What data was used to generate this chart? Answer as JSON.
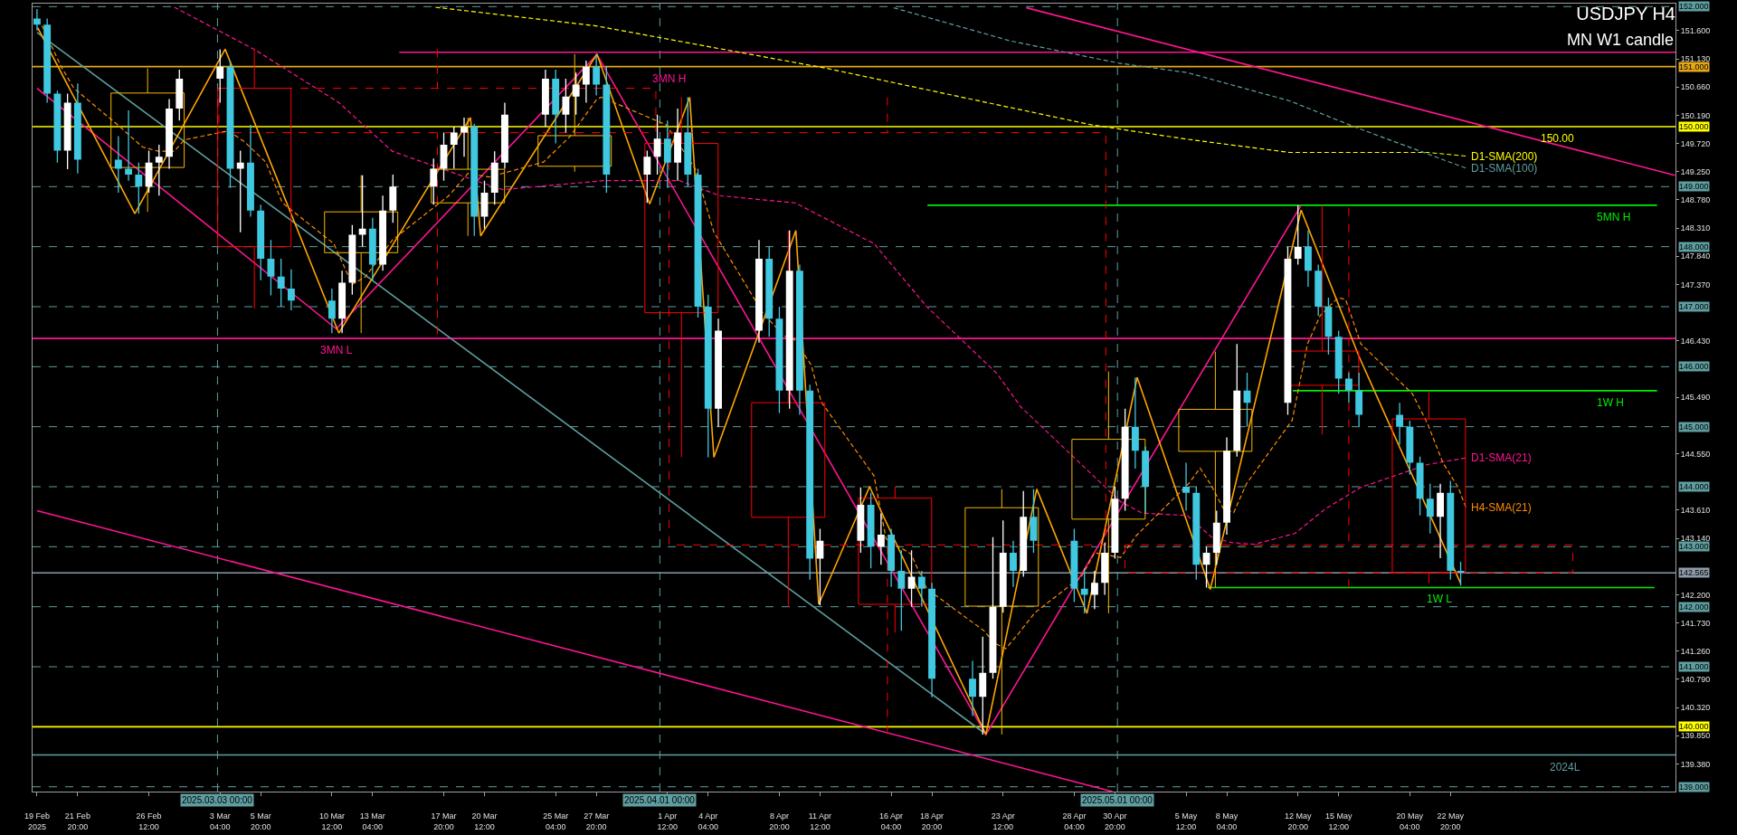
{
  "chart_data": {
    "type": "candlestick",
    "title": "USDJPY H4",
    "subtitle": "MN W1 candle",
    "xlim": [
      "2025-02-18T21:00",
      "2025-06-06T14:00"
    ],
    "ylim": [
      138.92,
      152.05
    ],
    "xticks": [
      {
        "value": "2025-02-19T04:00",
        "label": "19 Feb 2025"
      },
      {
        "value": "2025-02-21T20:00",
        "label": "21 Feb 20:00"
      },
      {
        "value": "2025-02-26T12:00",
        "label": "26 Feb 12:00"
      },
      {
        "value": "2025-03-03T04:00",
        "label": "3 Mar 04:00"
      },
      {
        "value": "2025-03-05T20:00",
        "label": "5 Mar 20:00"
      },
      {
        "value": "2025-03-10T12:00",
        "label": "10 Mar 12:00"
      },
      {
        "value": "2025-03-13T04:00",
        "label": "13 Mar 04:00"
      },
      {
        "value": "2025-03-17T20:00",
        "label": "17 Mar 20:00"
      },
      {
        "value": "2025-03-20T12:00",
        "label": "20 Mar 12:00"
      },
      {
        "value": "2025-03-25T04:00",
        "label": "25 Mar 04:00"
      },
      {
        "value": "2025-03-27T20:00",
        "label": "27 Mar 20:00"
      },
      {
        "value": "2025-04-01T12:00",
        "label": "1 Apr 12:00"
      },
      {
        "value": "2025-04-04T04:00",
        "label": "4 Apr 04:00"
      },
      {
        "value": "2025-04-08T20:00",
        "label": "8 Apr 20:00"
      },
      {
        "value": "2025-04-11T12:00",
        "label": "11 Apr 12:00"
      },
      {
        "value": "2025-04-16T04:00",
        "label": "16 Apr 04:00"
      },
      {
        "value": "2025-04-18T20:00",
        "label": "18 Apr 20:00"
      },
      {
        "value": "2025-04-23T12:00",
        "label": "23 Apr 12:00"
      },
      {
        "value": "2025-04-28T04:00",
        "label": "28 Apr 04:00"
      },
      {
        "value": "2025-04-30T20:00",
        "label": "30 Apr 20:00"
      },
      {
        "value": "2025-05-05T12:00",
        "label": "5 May 12:00"
      },
      {
        "value": "2025-05-08T04:00",
        "label": "8 May 04:00"
      },
      {
        "value": "2025-05-12T20:00",
        "label": "12 May 20:00"
      },
      {
        "value": "2025-05-15T12:00",
        "label": "15 May 12:00"
      },
      {
        "value": "2025-05-20T04:00",
        "label": "20 May 04:00"
      },
      {
        "value": "2025-05-22T20:00",
        "label": "22 May 20:00"
      }
    ],
    "yticks": [
      {
        "value": 151.6,
        "label": "151.600"
      },
      {
        "value": 151.13,
        "label": "151.130"
      },
      {
        "value": 150.66,
        "label": "150.660"
      },
      {
        "value": 150.19,
        "label": "150.190"
      },
      {
        "value": 149.72,
        "label": "149.720"
      },
      {
        "value": 149.25,
        "label": "149.250"
      },
      {
        "value": 148.78,
        "label": "148.780"
      },
      {
        "value": 148.31,
        "label": "148.310"
      },
      {
        "value": 147.84,
        "label": "147.840"
      },
      {
        "value": 147.37,
        "label": "147.370"
      },
      {
        "value": 146.43,
        "label": "146.430"
      },
      {
        "value": 145.49,
        "label": "145.490"
      },
      {
        "value": 144.55,
        "label": "144.550"
      },
      {
        "value": 143.61,
        "label": "143.610"
      },
      {
        "value": 143.14,
        "label": "143.140"
      },
      {
        "value": 142.2,
        "label": "142.200"
      },
      {
        "value": 141.73,
        "label": "141.730"
      },
      {
        "value": 141.26,
        "label": "141.260"
      },
      {
        "value": 140.79,
        "label": "140.790"
      },
      {
        "value": 140.32,
        "label": "140.320"
      },
      {
        "value": 139.85,
        "label": "139.850"
      },
      {
        "value": 139.38,
        "label": "139.380"
      }
    ],
    "series": [
      {
        "line_style": "dashed",
        "x": [
          "2025-03-17T10:00",
          "2025-04-15T22:00",
          "2025-05-16T04:00"
        ],
        "ohlc": [
          [
            150.64,
            151.29,
            146.54,
            149.9
          ],
          [
            149.9,
            150.49,
            139.89,
            143.03
          ],
          [
            143.03,
            148.65,
            142.32,
            142.565
          ]
        ],
        "colors": [
          "#ff0000",
          "#ff0000",
          "#ff0000"
        ]
      },
      {
        "line_style": "solid",
        "x": [
          "2025-02-26T10:00",
          "2025-03-05T10:00",
          "2025-03-12T10:00",
          "2025-03-19T10:00",
          "2025-03-26T10:00",
          "2025-04-02T10:00",
          "2025-04-09T10:00",
          "2025-04-16T10:00",
          "2025-04-23T10:00",
          "2025-04-30T10:00",
          "2025-05-07T10:00",
          "2025-05-14T10:00",
          "2025-05-21T10:00"
        ],
        "ohlc": [
          [
            149.32,
            150.97,
            148.58,
            150.56
          ],
          [
            150.64,
            151.29,
            146.97,
            148.0
          ],
          [
            147.9,
            149.19,
            146.56,
            148.58
          ],
          [
            148.73,
            150.15,
            148.18,
            149.29
          ],
          [
            149.34,
            151.21,
            149.25,
            149.85
          ],
          [
            149.72,
            150.49,
            144.49,
            146.9
          ],
          [
            145.4,
            148.27,
            142.0,
            143.49
          ],
          [
            143.81,
            144.0,
            141.57,
            142.04
          ],
          [
            142.01,
            143.96,
            139.87,
            143.65
          ],
          [
            143.46,
            145.92,
            141.89,
            144.79
          ],
          [
            144.59,
            146.25,
            142.32,
            145.29
          ],
          [
            146.26,
            148.69,
            144.87,
            145.69
          ],
          [
            145.13,
            145.58,
            142.39,
            142.565
          ]
        ],
        "colors": [
          "#f5b800",
          "#ff0000",
          "#f5b800",
          "#f5b800",
          "#f5b800",
          "#ff0000",
          "#ff0000",
          "#ff0000",
          "#f5b800",
          "#f5b800",
          "#f5b800",
          "#ff0000",
          "#ff0000"
        ]
      },
      {
        "x": [
          "2025-02-19T04:00",
          "2025-02-19T20:00",
          "2025-02-20T12:00",
          "2025-02-21T04:00",
          "2025-02-21T20:00",
          "2025-02-24T12:00",
          "2025-02-25T04:00",
          "2025-02-25T20:00",
          "2025-02-26T12:00",
          "2025-02-27T04:00",
          "2025-02-27T20:00",
          "2025-02-28T12:00",
          "2025-03-03T04:00",
          "2025-03-03T20:00",
          "2025-03-04T12:00",
          "2025-03-05T04:00",
          "2025-03-05T20:00",
          "2025-03-06T12:00",
          "2025-03-07T04:00",
          "2025-03-07T20:00",
          "2025-03-10T12:00",
          "2025-03-11T04:00",
          "2025-03-11T20:00",
          "2025-03-12T12:00",
          "2025-03-13T04:00",
          "2025-03-13T20:00",
          "2025-03-14T12:00",
          "2025-03-17T04:00",
          "2025-03-17T20:00",
          "2025-03-18T12:00",
          "2025-03-19T04:00",
          "2025-03-19T20:00",
          "2025-03-20T12:00",
          "2025-03-21T04:00",
          "2025-03-21T20:00",
          "2025-03-24T12:00",
          "2025-03-25T04:00",
          "2025-03-25T20:00",
          "2025-03-26T12:00",
          "2025-03-27T04:00",
          "2025-03-27T20:00",
          "2025-03-28T12:00",
          "2025-03-31T04:00",
          "2025-03-31T20:00",
          "2025-04-01T12:00",
          "2025-04-02T04:00",
          "2025-04-02T20:00",
          "2025-04-03T12:00",
          "2025-04-04T04:00",
          "2025-04-04T20:00",
          "2025-04-07T12:00",
          "2025-04-08T04:00",
          "2025-04-08T20:00",
          "2025-04-09T12:00",
          "2025-04-10T04:00",
          "2025-04-10T20:00",
          "2025-04-11T12:00",
          "2025-04-14T04:00",
          "2025-04-14T20:00",
          "2025-04-15T12:00",
          "2025-04-16T04:00",
          "2025-04-16T20:00",
          "2025-04-17T12:00",
          "2025-04-18T04:00",
          "2025-04-18T20:00",
          "2025-04-21T12:00",
          "2025-04-22T04:00",
          "2025-04-22T20:00",
          "2025-04-23T12:00",
          "2025-04-24T04:00",
          "2025-04-24T20:00",
          "2025-04-25T12:00",
          "2025-04-28T04:00",
          "2025-04-28T20:00",
          "2025-04-29T12:00",
          "2025-04-30T04:00",
          "2025-04-30T20:00",
          "2025-05-01T12:00",
          "2025-05-02T04:00",
          "2025-05-02T20:00",
          "2025-05-05T12:00",
          "2025-05-06T04:00",
          "2025-05-06T20:00",
          "2025-05-07T12:00",
          "2025-05-08T04:00",
          "2025-05-08T20:00",
          "2025-05-09T12:00",
          "2025-05-12T04:00",
          "2025-05-12T20:00",
          "2025-05-13T12:00",
          "2025-05-14T04:00",
          "2025-05-14T20:00",
          "2025-05-15T12:00",
          "2025-05-16T04:00",
          "2025-05-16T20:00",
          "2025-05-19T12:00",
          "2025-05-20T04:00",
          "2025-05-20T20:00",
          "2025-05-21T12:00",
          "2025-05-22T04:00",
          "2025-05-22T20:00",
          "2025-05-23T12:00"
        ],
        "ohlc": [
          [
            151.8,
            151.96,
            151.6,
            151.7
          ],
          [
            151.7,
            151.8,
            150.4,
            150.55
          ],
          [
            150.55,
            150.6,
            149.4,
            149.6
          ],
          [
            149.6,
            150.55,
            149.29,
            150.4
          ],
          [
            150.4,
            150.72,
            149.22,
            149.45
          ],
          [
            149.45,
            149.84,
            148.9,
            149.3
          ],
          [
            149.3,
            150.27,
            149.1,
            149.2
          ],
          [
            149.2,
            149.4,
            148.55,
            149.0
          ],
          [
            149.0,
            149.6,
            148.9,
            149.4
          ],
          [
            149.4,
            149.7,
            148.85,
            149.5
          ],
          [
            149.5,
            150.46,
            149.3,
            150.3
          ],
          [
            150.3,
            150.95,
            150.1,
            150.8
          ],
          [
            150.8,
            151.29,
            150.4,
            151.0
          ],
          [
            151.0,
            151.1,
            148.98,
            149.3
          ],
          [
            149.3,
            149.6,
            148.24,
            149.4
          ],
          [
            149.4,
            150.03,
            148.5,
            148.6
          ],
          [
            148.6,
            148.7,
            147.44,
            147.8
          ],
          [
            147.8,
            148.11,
            147.19,
            147.5
          ],
          [
            147.5,
            147.8,
            147.0,
            147.3
          ],
          [
            147.3,
            147.62,
            146.94,
            147.1
          ],
          [
            147.1,
            147.3,
            146.56,
            146.8
          ],
          [
            146.8,
            147.6,
            146.56,
            147.4
          ],
          [
            147.4,
            148.36,
            147.2,
            148.2
          ],
          [
            148.2,
            149.19,
            148.0,
            148.3
          ],
          [
            148.3,
            148.48,
            147.44,
            147.7
          ],
          [
            147.7,
            148.85,
            147.6,
            148.6
          ],
          [
            148.6,
            149.2,
            148.4,
            149.0
          ],
          [
            149.0,
            149.47,
            148.7,
            149.3
          ],
          [
            149.3,
            149.9,
            149.1,
            149.7
          ],
          [
            149.7,
            150.0,
            149.3,
            149.9
          ],
          [
            149.9,
            150.15,
            149.5,
            150.0
          ],
          [
            150.0,
            150.05,
            148.18,
            148.5
          ],
          [
            148.5,
            149.1,
            148.3,
            148.9
          ],
          [
            148.9,
            149.59,
            148.7,
            149.4
          ],
          [
            149.4,
            150.4,
            149.3,
            150.2
          ],
          [
            150.2,
            150.95,
            150.0,
            150.8
          ],
          [
            150.8,
            150.95,
            149.72,
            150.2
          ],
          [
            150.2,
            150.8,
            149.9,
            150.5
          ],
          [
            150.5,
            150.9,
            150.2,
            150.7
          ],
          [
            150.7,
            151.1,
            150.4,
            151.0
          ],
          [
            151.0,
            151.21,
            150.52,
            150.7
          ],
          [
            150.7,
            151.0,
            148.9,
            149.2
          ],
          [
            149.2,
            149.6,
            148.73,
            149.5
          ],
          [
            149.5,
            150.2,
            149.2,
            149.8
          ],
          [
            149.8,
            150.1,
            148.98,
            149.4
          ],
          [
            149.4,
            150.3,
            149.1,
            149.9
          ],
          [
            149.9,
            150.49,
            149.0,
            149.2
          ],
          [
            149.2,
            149.3,
            146.82,
            147.0
          ],
          [
            147.0,
            147.2,
            144.49,
            145.3
          ],
          [
            145.3,
            146.8,
            145.0,
            146.6
          ],
          [
            146.6,
            148.11,
            146.4,
            147.8
          ],
          [
            147.8,
            148.0,
            146.5,
            146.8
          ],
          [
            146.8,
            147.0,
            145.23,
            145.6
          ],
          [
            145.6,
            148.27,
            145.3,
            147.6
          ],
          [
            147.6,
            147.7,
            145.2,
            145.6
          ],
          [
            145.6,
            145.7,
            142.45,
            142.8
          ],
          [
            142.8,
            143.3,
            142.02,
            143.1
          ],
          [
            143.1,
            143.99,
            142.9,
            143.7
          ],
          [
            143.7,
            143.9,
            142.64,
            143.0
          ],
          [
            143.0,
            143.56,
            142.7,
            143.2
          ],
          [
            143.2,
            143.3,
            142.33,
            142.6
          ],
          [
            142.6,
            142.94,
            141.6,
            142.3
          ],
          [
            142.3,
            142.94,
            142.0,
            142.5
          ],
          [
            142.5,
            142.6,
            142.0,
            142.3
          ],
          [
            142.3,
            142.4,
            140.49,
            140.8
          ],
          [
            140.8,
            141.1,
            140.18,
            140.5
          ],
          [
            140.5,
            141.5,
            139.87,
            140.9
          ],
          [
            140.9,
            143.16,
            140.8,
            142.0
          ],
          [
            142.0,
            143.44,
            141.9,
            142.9
          ],
          [
            142.9,
            143.1,
            142.33,
            142.6
          ],
          [
            142.6,
            143.93,
            142.5,
            143.5
          ],
          [
            143.5,
            143.96,
            142.9,
            143.1
          ],
          [
            143.1,
            143.3,
            142.08,
            142.3
          ],
          [
            142.3,
            142.64,
            141.89,
            142.2
          ],
          [
            142.2,
            142.6,
            141.96,
            142.4
          ],
          [
            142.4,
            143.07,
            142.2,
            142.9
          ],
          [
            142.9,
            144.0,
            142.8,
            143.8
          ],
          [
            143.8,
            145.3,
            143.6,
            145.0
          ],
          [
            145.0,
            145.82,
            144.3,
            144.6
          ],
          [
            144.6,
            144.67,
            143.56,
            144.0
          ],
          [
            144.0,
            144.4,
            143.6,
            143.9
          ],
          [
            143.9,
            144.0,
            142.45,
            142.7
          ],
          [
            142.7,
            143.0,
            142.32,
            142.9
          ],
          [
            142.9,
            143.6,
            142.7,
            143.4
          ],
          [
            143.4,
            144.82,
            143.2,
            144.6
          ],
          [
            144.6,
            146.38,
            144.5,
            145.6
          ],
          [
            145.6,
            145.9,
            145.0,
            145.4
          ],
          [
            145.4,
            148.0,
            145.2,
            147.8
          ],
          [
            147.8,
            148.69,
            147.7,
            148.0
          ],
          [
            148.0,
            148.27,
            147.33,
            147.6
          ],
          [
            147.6,
            147.7,
            146.85,
            147.0
          ],
          [
            147.0,
            147.15,
            146.2,
            146.5
          ],
          [
            146.5,
            146.6,
            145.55,
            145.8
          ],
          [
            145.8,
            145.9,
            145.4,
            145.6
          ],
          [
            145.6,
            145.9,
            145.0,
            145.2
          ],
          [
            145.2,
            145.4,
            144.7,
            145.0
          ],
          [
            145.0,
            145.1,
            144.2,
            144.4
          ],
          [
            144.4,
            144.5,
            143.52,
            143.8
          ],
          [
            143.8,
            144.05,
            143.22,
            143.5
          ],
          [
            143.5,
            144.05,
            142.81,
            143.9
          ],
          [
            143.9,
            144.1,
            142.45,
            142.6
          ],
          [
            142.6,
            142.75,
            142.35,
            142.565
          ]
        ],
        "colors": [
          "#40c8e0",
          "#40c8e0",
          "#40c8e0",
          "#ffffff",
          "#40c8e0",
          "#40c8e0",
          "#40c8e0",
          "#40c8e0",
          "#ffffff",
          "#ffffff",
          "#ffffff",
          "#ffffff",
          "#ffffff",
          "#40c8e0",
          "#ffffff",
          "#40c8e0",
          "#40c8e0",
          "#40c8e0",
          "#40c8e0",
          "#40c8e0",
          "#40c8e0",
          "#ffffff",
          "#ffffff",
          "#ffffff",
          "#40c8e0",
          "#ffffff",
          "#ffffff",
          "#ffffff",
          "#ffffff",
          "#ffffff",
          "#ffffff",
          "#40c8e0",
          "#ffffff",
          "#ffffff",
          "#ffffff",
          "#ffffff",
          "#40c8e0",
          "#ffffff",
          "#ffffff",
          "#ffffff",
          "#40c8e0",
          "#40c8e0",
          "#ffffff",
          "#ffffff",
          "#40c8e0",
          "#ffffff",
          "#40c8e0",
          "#40c8e0",
          "#40c8e0",
          "#ffffff",
          "#ffffff",
          "#40c8e0",
          "#40c8e0",
          "#ffffff",
          "#40c8e0",
          "#40c8e0",
          "#ffffff",
          "#ffffff",
          "#40c8e0",
          "#ffffff",
          "#40c8e0",
          "#40c8e0",
          "#ffffff",
          "#40c8e0",
          "#40c8e0",
          "#40c8e0",
          "#ffffff",
          "#ffffff",
          "#ffffff",
          "#40c8e0",
          "#ffffff",
          "#40c8e0",
          "#40c8e0",
          "#40c8e0",
          "#ffffff",
          "#ffffff",
          "#ffffff",
          "#ffffff",
          "#40c8e0",
          "#40c8e0",
          "#40c8e0",
          "#40c8e0",
          "#ffffff",
          "#ffffff",
          "#ffffff",
          "#ffffff",
          "#40c8e0",
          "#ffffff",
          "#ffffff",
          "#40c8e0",
          "#40c8e0",
          "#40c8e0",
          "#40c8e0",
          "#40c8e0",
          "#40c8e0",
          "#40c8e0",
          "#40c8e0",
          "#40c8e0",
          "#40c8e0",
          "#ffffff",
          "#40c8e0",
          "#40c8e0"
        ]
      },
      {
        "type": "line",
        "color": "#5f9ea0",
        "x": [
          "2025-02-19T04:00",
          "2025-04-22T06:00"
        ],
        "values": [
          151.57,
          139.9
        ]
      },
      {
        "type": "line",
        "color": "#ff1493",
        "x": [
          "2025-04-25T01:00",
          "2025-06-06T13:00"
        ],
        "values": [
          151.98,
          149.19
        ]
      },
      {
        "type": "line",
        "color": "#ff1493",
        "x": [
          "2025-02-19T04:00",
          "2025-04-30T16:00"
        ],
        "values": [
          143.6,
          138.92
        ]
      },
      {
        "type": "line",
        "color": "#ff1493",
        "x": [
          "2025-03-14T22:00",
          "2025-06-06T14:00"
        ],
        "values": [
          151.24,
          151.24
        ]
      },
      {
        "type": "line",
        "color": "#00ee00",
        "x": [
          "2025-04-18T13:00",
          "2025-06-05T09:00"
        ],
        "values": [
          148.69,
          148.69
        ]
      },
      {
        "type": "line",
        "color": "#00ee00",
        "x": [
          "2025-05-12T12:00",
          "2025-06-05T09:00"
        ],
        "values": [
          145.6,
          145.6
        ]
      },
      {
        "type": "line",
        "color": "#00ee00",
        "x": [
          "2025-05-06T22:00",
          "2025-06-05T05:00"
        ],
        "values": [
          142.32,
          142.32
        ]
      },
      {
        "type": "line",
        "color": "#ff1493",
        "x": [
          "2025-02-19T04:00",
          "2025-03-10T19:00",
          "2025-03-27T21:00",
          "2025-04-22T09:00",
          "2025-05-13T01:00"
        ],
        "values": [
          150.64,
          146.63,
          151.2,
          139.87,
          148.69
        ]
      },
      {
        "type": "line",
        "color": "#ffa500",
        "x": [
          "2025-02-19T05:00",
          "2025-02-25T14:00",
          "2025-03-03T12:00",
          "2025-03-10T23:00",
          "2025-03-19T14:00",
          "2025-03-20T06:00",
          "2025-03-27T21:00",
          "2025-03-31T08:00",
          "2025-04-02T23:00",
          "2025-04-04T13:00",
          "2025-04-09T22:00",
          "2025-04-11T10:00",
          "2025-04-14T18:00",
          "2025-04-22T09:00",
          "2025-04-25T17:00",
          "2025-04-29T00:00",
          "2025-05-02T07:00",
          "2025-05-07T02:00",
          "2025-05-13T01:00",
          "2025-05-16T20:00",
          "2025-05-23T12:00"
        ],
        "values": [
          151.65,
          148.55,
          151.29,
          146.56,
          150.15,
          148.18,
          151.21,
          148.71,
          150.49,
          144.49,
          148.27,
          142.04,
          144.0,
          139.87,
          143.96,
          141.89,
          145.82,
          142.29,
          148.61,
          146.17,
          142.39
        ]
      },
      {
        "type": "line",
        "name": "D1-SMA(200)",
        "color": "#ffff00",
        "line_style": "dashed",
        "x": [
          "2025-03-17T07:00",
          "2025-03-27T19:00",
          "2025-04-11T23:00",
          "2025-04-29T07:00",
          "2025-05-05T14:00",
          "2025-05-12T07:00",
          "2025-05-21T08:00",
          "2025-05-23T20:00"
        ],
        "values": [
          151.99,
          151.68,
          150.97,
          150.03,
          149.79,
          149.57,
          149.57,
          149.51
        ]
      },
      {
        "type": "line",
        "name": "D1-SMA(100)",
        "color": "#5f9ea0",
        "line_style": "dashed",
        "x": [
          "2025-04-16T08:00",
          "2025-04-23T23:00",
          "2025-05-01T01:00",
          "2025-05-05T14:00",
          "2025-05-12T07:00",
          "2025-05-16T12:00",
          "2025-05-23T20:00"
        ],
        "values": [
          151.98,
          151.43,
          151.06,
          150.9,
          150.43,
          150.0,
          149.31
        ]
      },
      {
        "type": "line",
        "name": "D1-SMA(21)",
        "color": "#ff1493",
        "line_style": "dashed",
        "x": [
          "2025-02-28T04:00",
          "2025-03-05T11:00",
          "2025-03-10T23:00",
          "2025-03-14T11:00",
          "2025-03-19T22:00",
          "2025-03-21T17:00",
          "2025-03-28T08:00",
          "2025-04-02T07:00",
          "2025-04-04T22:00",
          "2025-04-09T21:00",
          "2025-04-15T01:00",
          "2025-04-18T12:00",
          "2025-04-23T02:00",
          "2025-04-24T16:00",
          "2025-05-01T05:00",
          "2025-05-02T15:00",
          "2025-05-05T14:00",
          "2025-05-07T04:00",
          "2025-05-08T11:00",
          "2025-05-09T23:00",
          "2025-05-12T15:00",
          "2025-05-14T15:00",
          "2025-05-16T23:00",
          "2025-05-21T08:00",
          "2025-05-23T20:00"
        ],
        "values": [
          151.99,
          151.28,
          150.4,
          149.59,
          149.1,
          148.95,
          149.1,
          149.1,
          148.85,
          148.73,
          148.05,
          147.0,
          145.89,
          145.33,
          143.75,
          143.56,
          143.52,
          143.16,
          143.07,
          143.04,
          143.22,
          143.63,
          143.99,
          144.37,
          144.48
        ]
      },
      {
        "type": "line",
        "name": "H4-SMA(21)",
        "color": "#ff8c00",
        "line_style": "dashed",
        "x": [
          "2025-02-19T12:00",
          "2025-02-20T18:00",
          "2025-02-21T14:00",
          "2025-02-24T11:00",
          "2025-02-26T02:00",
          "2025-02-27T03:00",
          "2025-02-28T04:00",
          "2025-02-28T20:00",
          "2025-03-03T17:00",
          "2025-03-04T18:00",
          "2025-03-06T04:00",
          "2025-03-07T06:00",
          "2025-03-10T15:00",
          "2025-03-11T20:00",
          "2025-03-12T17:00",
          "2025-03-14T11:00",
          "2025-03-18T04:00",
          "2025-03-19T10:00",
          "2025-03-20T20:00",
          "2025-03-24T09:00",
          "2025-03-26T03:00",
          "2025-03-27T21:00",
          "2025-03-28T04:00",
          "2025-04-01T10:00",
          "2025-04-03T08:00",
          "2025-04-04T13:00",
          "2025-04-07T19:00",
          "2025-04-09T04:00",
          "2025-04-09T20:00",
          "2025-04-10T22:00",
          "2025-04-11T14:00",
          "2025-04-15T01:00",
          "2025-04-15T20:00",
          "2025-04-17T11:00",
          "2025-04-18T12:00",
          "2025-04-22T06:00",
          "2025-04-22T22:00",
          "2025-04-23T16:00",
          "2025-04-24T12:00",
          "2025-04-25T14:00",
          "2025-04-28T15:00",
          "2025-04-29T12:00",
          "2025-05-01T05:00",
          "2025-05-02T06:00",
          "2025-05-05T16:00",
          "2025-05-06T10:00",
          "2025-05-07T02:00",
          "2025-05-07T23:00",
          "2025-05-08T15:00",
          "2025-05-09T11:00",
          "2025-05-12T11:00",
          "2025-05-13T11:00",
          "2025-05-14T07:00",
          "2025-05-15T11:00",
          "2025-05-15T23:00",
          "2025-05-16T23:00",
          "2025-05-20T08:00",
          "2025-05-21T08:00",
          "2025-05-22T08:00",
          "2025-05-23T08:00",
          "2025-05-23T20:00"
        ],
        "values": [
          151.68,
          151.0,
          150.64,
          150.03,
          149.66,
          149.59,
          149.59,
          149.78,
          149.93,
          149.75,
          149.41,
          148.73,
          148.05,
          147.37,
          147.5,
          148.11,
          148.85,
          149.22,
          149.16,
          149.41,
          149.84,
          150.46,
          150.49,
          150.03,
          149.29,
          148.24,
          146.88,
          146.51,
          146.45,
          146.03,
          145.41,
          144.18,
          143.13,
          142.88,
          142.3,
          141.6,
          141.4,
          141.3,
          141.55,
          141.9,
          142.5,
          142.9,
          142.82,
          143.19,
          144.05,
          144.31,
          144.05,
          143.63,
          143.57,
          144.05,
          145.11,
          146.38,
          146.85,
          147.15,
          147.12,
          146.38,
          145.55,
          145.05,
          144.4,
          143.99,
          143.66
        ]
      }
    ],
    "ref_lines": [
      {
        "axis": "y",
        "value": 152,
        "label": "152.000",
        "color": "#5f9ea0",
        "line_style": "dashed"
      },
      {
        "axis": "y",
        "value": 149,
        "label": "149.000",
        "color": "#5f9ea0",
        "line_style": "dashed"
      },
      {
        "axis": "y",
        "value": 148,
        "label": "148.000",
        "color": "#5f9ea0",
        "line_style": "dashed"
      },
      {
        "axis": "y",
        "value": 147,
        "label": "147.000",
        "color": "#5f9ea0",
        "line_style": "dashed"
      },
      {
        "axis": "y",
        "value": 146,
        "label": "146.000",
        "color": "#5f9ea0",
        "line_style": "dashed"
      },
      {
        "axis": "y",
        "value": 145,
        "label": "145.000",
        "color": "#5f9ea0",
        "line_style": "dashed"
      },
      {
        "axis": "y",
        "value": 144,
        "label": "144.000",
        "color": "#5f9ea0",
        "line_style": "dashed"
      },
      {
        "axis": "y",
        "value": 143,
        "label": "143.000",
        "color": "#5f9ea0",
        "line_style": "dashed"
      },
      {
        "axis": "y",
        "value": 142,
        "label": "142.000",
        "color": "#5f9ea0",
        "line_style": "dashed"
      },
      {
        "axis": "y",
        "value": 141,
        "label": "141.000",
        "color": "#5f9ea0",
        "line_style": "dashed"
      },
      {
        "axis": "y",
        "value": 139,
        "label": "139.000",
        "color": "#5f9ea0",
        "line_style": "dashed"
      },
      {
        "axis": "y",
        "value": 151,
        "label": "151.000",
        "color": "#e6a817"
      },
      {
        "axis": "y",
        "value": 150,
        "label": "150.000",
        "color": "#ffff00"
      },
      {
        "axis": "y",
        "value": 140,
        "label": "140.000",
        "color": "#ffff00"
      },
      {
        "axis": "y",
        "value": 146.47,
        "color": "#ff1493"
      },
      {
        "axis": "y",
        "value": 139.53,
        "color": "#5f9ea0"
      },
      {
        "axis": "y",
        "value": 142.565,
        "label": "142.565",
        "color": "#8c9aa8"
      },
      {
        "axis": "x",
        "value": "2025-03-03",
        "label": "2025.03.03 00:00",
        "color": "#5f9ea0",
        "line_style": "dashed"
      },
      {
        "axis": "x",
        "value": "2025-04-01",
        "label": "2025.04.01 00:00",
        "color": "#5f9ea0",
        "line_style": "dashed"
      },
      {
        "axis": "x",
        "value": "2025-05-01",
        "label": "2025.05.01 00:00",
        "color": "#5f9ea0",
        "line_style": "dashed"
      }
    ],
    "annotations": [
      {
        "text": "3MN H",
        "x": "2025-04-01T14:00",
        "y": 151.24
      },
      {
        "text": "3MN L",
        "x": "2025-03-10T19:00",
        "y": 146.47
      },
      {
        "text": "5MN H",
        "x": "2025-06-02T12:00",
        "y": 148.69
      },
      {
        "text": "1W H",
        "x": "2025-06-02T08:00",
        "y": 145.6
      },
      {
        "text": "1W L",
        "x": "2025-05-22T02:00",
        "y": 142.32
      },
      {
        "text": "2024L",
        "x": "2025-05-30T08:00",
        "y": 139.53
      },
      {
        "text": "150.00",
        "x": "2025-05-29T20:00",
        "y": 150
      }
    ]
  }
}
